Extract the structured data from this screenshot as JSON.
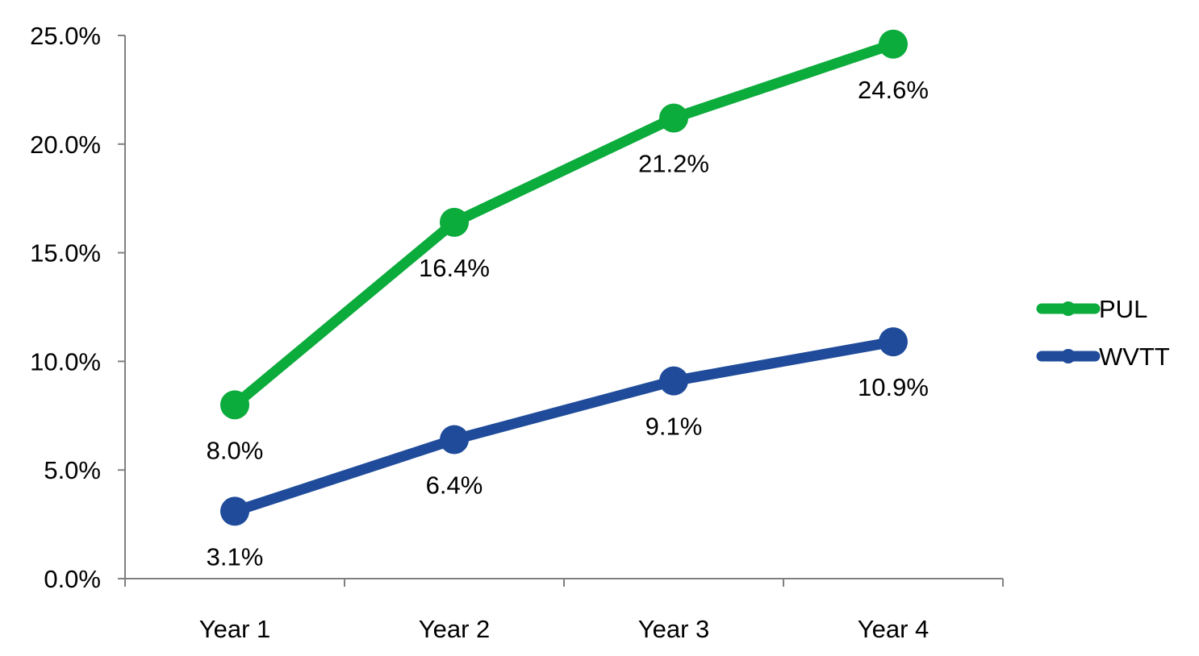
{
  "chart_data": {
    "type": "line",
    "title": "",
    "xlabel": "",
    "ylabel": "",
    "categories": [
      "Year 1",
      "Year 2",
      "Year 3",
      "Year 4"
    ],
    "ylim": [
      0,
      25
    ],
    "y_ticks": [
      0,
      5,
      10,
      15,
      20,
      25
    ],
    "y_tick_labels": [
      "0.0%",
      "5.0%",
      "10.0%",
      "15.0%",
      "20.0%",
      "25.0%"
    ],
    "grid": false,
    "legend_position": "right",
    "series": [
      {
        "name": "PUL",
        "color": "#0bab3c",
        "values": [
          8.0,
          16.4,
          21.2,
          24.6
        ],
        "labels": [
          "8.0%",
          "16.4%",
          "21.2%",
          "24.6%"
        ]
      },
      {
        "name": "WVTT",
        "color": "#1f4b9a",
        "values": [
          3.1,
          6.4,
          9.1,
          10.9
        ],
        "labels": [
          "3.1%",
          "6.4%",
          "9.1%",
          "10.9%"
        ]
      }
    ]
  }
}
